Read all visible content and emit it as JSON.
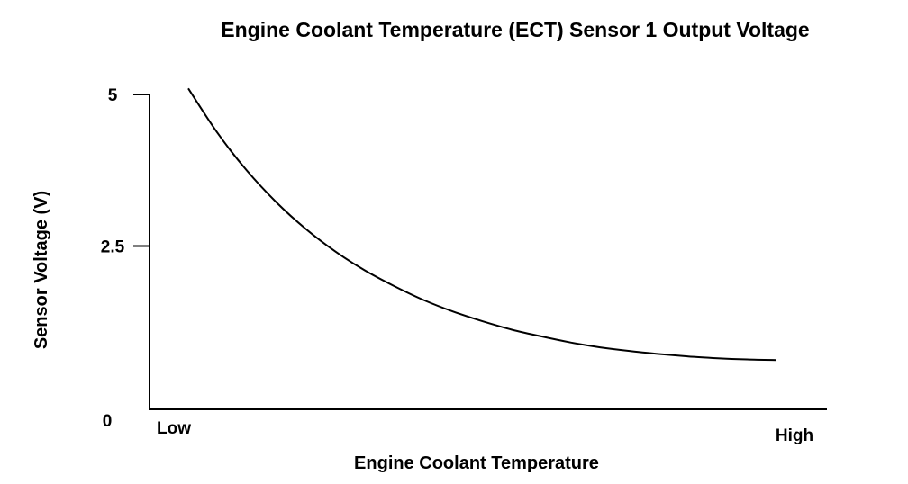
{
  "chart_data": {
    "type": "line",
    "title": "Engine Coolant Temperature (ECT) Sensor 1 Output Voltage",
    "xlabel": "Engine Coolant Temperature",
    "ylabel": "Sensor Voltage (V)",
    "x_tick_labels": [
      "Low",
      "High"
    ],
    "y_ticks": [
      "5",
      "2.5"
    ],
    "y_origin_label": "0",
    "ylim": [
      0,
      5
    ],
    "grid": false,
    "series": [
      {
        "x": [
          0,
          0.05,
          0.1,
          0.15,
          0.2,
          0.25,
          0.3,
          0.35,
          0.4,
          0.45,
          0.5,
          0.55,
          0.6,
          0.65,
          0.7,
          0.75,
          0.8,
          0.85,
          0.9,
          0.95,
          1.0
        ],
        "values": [
          5.1,
          4.36,
          3.74,
          3.22,
          2.78,
          2.41,
          2.1,
          1.84,
          1.61,
          1.42,
          1.26,
          1.12,
          1.01,
          0.91,
          0.83,
          0.77,
          0.72,
          0.68,
          0.65,
          0.63,
          0.62
        ]
      }
    ]
  }
}
